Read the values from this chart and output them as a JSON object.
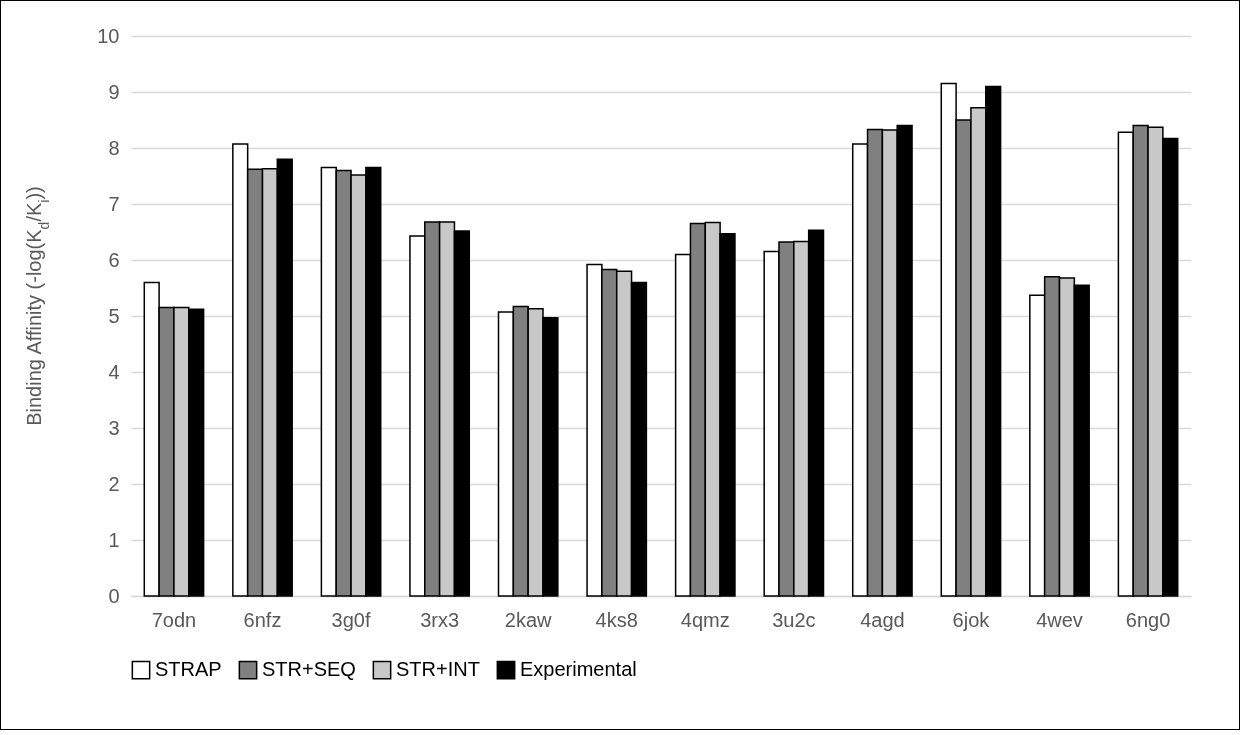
{
  "chart_data": {
    "type": "bar",
    "ylabel": "Binding Affinity (-log(K$_{d}$/K$_{i}$))",
    "categories": [
      "7odn",
      "6nfz",
      "3g0f",
      "3rx3",
      "2kaw",
      "4ks8",
      "4qmz",
      "3u2c",
      "4agd",
      "6jok",
      "4wev",
      "6ng0"
    ],
    "series": [
      {
        "name": "STRAP",
        "color": "#ffffff",
        "values": [
          5.6,
          8.07,
          7.65,
          6.43,
          5.07,
          5.92,
          6.1,
          6.15,
          8.07,
          9.15,
          5.37,
          8.28
        ]
      },
      {
        "name": "STR+SEQ",
        "color": "#808080",
        "values": [
          5.15,
          7.62,
          7.6,
          6.68,
          5.17,
          5.83,
          6.65,
          6.32,
          8.33,
          8.5,
          5.7,
          8.4
        ]
      },
      {
        "name": "STR+INT",
        "color": "#c8c8c8",
        "values": [
          5.15,
          7.63,
          7.52,
          6.68,
          5.13,
          5.8,
          6.67,
          6.33,
          8.32,
          8.72,
          5.68,
          8.37
        ]
      },
      {
        "name": "Experimental",
        "color": "#000000",
        "values": [
          5.12,
          7.8,
          7.65,
          6.52,
          4.97,
          5.6,
          6.47,
          6.53,
          8.4,
          9.1,
          5.55,
          8.17
        ]
      }
    ],
    "ylim": [
      0,
      10
    ],
    "yticks": [
      0,
      1,
      2,
      3,
      4,
      5,
      6,
      7,
      8,
      9,
      10
    ],
    "grid": "y",
    "legend": "bottom"
  }
}
